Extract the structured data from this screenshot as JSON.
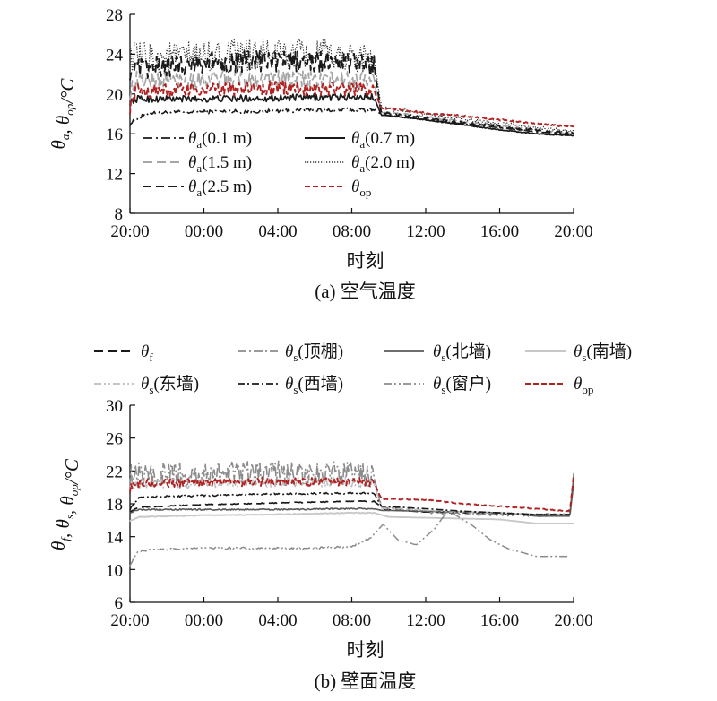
{
  "colors": {
    "black": "#1a1a1a",
    "gray": "#a6a6a6",
    "light_gray": "#c8c8c8",
    "red": "#b22222"
  },
  "chart_data": [
    {
      "type": "line",
      "caption": "(a) 空气温度",
      "xlabel": "时刻",
      "ylabel_parts": [
        "θ",
        "a",
        ", θ",
        "op",
        "/°C"
      ],
      "xticks": [
        "20:00",
        "00:00",
        "04:00",
        "08:00",
        "12:00",
        "16:00",
        "20:00"
      ],
      "x_hours": [
        0,
        4,
        8,
        12,
        16,
        20,
        24
      ],
      "ylim": [
        8,
        28
      ],
      "yticks": [
        8,
        12,
        16,
        20,
        24,
        28
      ],
      "legend": [
        {
          "sym": "θ",
          "sub": "a",
          "tail": "(0.1 m)"
        },
        {
          "sym": "θ",
          "sub": "a",
          "tail": "(0.7 m)"
        },
        {
          "sym": "θ",
          "sub": "a",
          "tail": "(1.5 m)"
        },
        {
          "sym": "θ",
          "sub": "a",
          "tail": "(2.0 m)"
        },
        {
          "sym": "θ",
          "sub": "a",
          "tail": "(2.5 m)"
        },
        {
          "sym": "θ",
          "sub": "op",
          "tail": ""
        }
      ],
      "series": [
        {
          "name": "θa(0.1 m)",
          "color": "#1a1a1a",
          "dash": "10,4,2,4",
          "width": 1.6,
          "noise": 0.2,
          "points": [
            [
              0,
              17
            ],
            [
              0.5,
              17.6
            ],
            [
              1,
              18.1
            ],
            [
              4,
              18.2
            ],
            [
              8,
              18.3
            ],
            [
              12,
              18.4
            ],
            [
              13,
              18.4
            ],
            [
              13.3,
              18.4
            ],
            [
              13.6,
              17.9
            ],
            [
              16,
              17.4
            ],
            [
              18,
              17
            ],
            [
              20,
              16.6
            ],
            [
              22,
              16.2
            ],
            [
              24,
              15.9
            ]
          ]
        },
        {
          "name": "θa(0.7 m)",
          "color": "#1a1a1a",
          "dash": "",
          "width": 1.7,
          "noise": 0.35,
          "points": [
            [
              0,
              19.2
            ],
            [
              0.3,
              19.5
            ],
            [
              4,
              19.5
            ],
            [
              8,
              19.6
            ],
            [
              12,
              19.7
            ],
            [
              13.2,
              19.7
            ],
            [
              13.6,
              17.9
            ],
            [
              16,
              17.4
            ],
            [
              18,
              16.9
            ],
            [
              20,
              16.4
            ],
            [
              22,
              16
            ],
            [
              24,
              15.8
            ]
          ]
        },
        {
          "name": "θa(1.5 m)",
          "color": "#a6a6a6",
          "dash": "10,5",
          "width": 1.7,
          "noise": 0.9,
          "points": [
            [
              0,
              20.2
            ],
            [
              0.3,
              21.4
            ],
            [
              4,
              21.5
            ],
            [
              8,
              21.5
            ],
            [
              12,
              21.4
            ],
            [
              13.2,
              21.3
            ],
            [
              13.6,
              18.2
            ],
            [
              16,
              17.7
            ],
            [
              18,
              17.2
            ],
            [
              20,
              16.8
            ],
            [
              22,
              16.4
            ],
            [
              24,
              16
            ]
          ]
        },
        {
          "name": "θa(2.0 m)",
          "color": "#333333",
          "dash": "1.2,1.8",
          "width": 1.2,
          "noise": 1.6,
          "points": [
            [
              0,
              23.6
            ],
            [
              4,
              23.8
            ],
            [
              8,
              24
            ],
            [
              12,
              23.8
            ],
            [
              13.2,
              23.6
            ],
            [
              13.6,
              18.6
            ],
            [
              16,
              18
            ],
            [
              18,
              17.5
            ],
            [
              20,
              17
            ],
            [
              22,
              16.6
            ],
            [
              24,
              16.2
            ]
          ]
        },
        {
          "name": "θa(2.5 m)",
          "color": "#1a1a1a",
          "dash": "9,5",
          "width": 1.9,
          "noise": 1.1,
          "points": [
            [
              0,
              22.4
            ],
            [
              4,
              23.2
            ],
            [
              8,
              23.3
            ],
            [
              12,
              23.2
            ],
            [
              13.2,
              22.8
            ],
            [
              13.6,
              18.1
            ],
            [
              16,
              17.6
            ],
            [
              18,
              17.1
            ],
            [
              20,
              16.7
            ],
            [
              22,
              16.3
            ],
            [
              24,
              16
            ]
          ]
        },
        {
          "name": "θop",
          "color": "#b22222",
          "dash": "6,3",
          "width": 1.9,
          "noise": 0.7,
          "points": [
            [
              0,
              18.6
            ],
            [
              0.3,
              20.3
            ],
            [
              4,
              20.4
            ],
            [
              8,
              20.6
            ],
            [
              12,
              20.5
            ],
            [
              13.2,
              20.4
            ],
            [
              13.6,
              18.6
            ],
            [
              16,
              18.1
            ],
            [
              18,
              17.8
            ],
            [
              20,
              17.4
            ],
            [
              22,
              17
            ],
            [
              24,
              16.7
            ]
          ]
        }
      ]
    },
    {
      "type": "line",
      "caption": "(b) 壁面温度",
      "xlabel": "时刻",
      "ylabel_parts": [
        "θ",
        "f",
        ", θ",
        "s",
        ", θ",
        "op",
        "/°C"
      ],
      "xticks": [
        "20:00",
        "00:00",
        "04:00",
        "08:00",
        "12:00",
        "16:00",
        "20:00"
      ],
      "x_hours": [
        0,
        4,
        8,
        12,
        16,
        20,
        24
      ],
      "ylim": [
        6,
        30
      ],
      "yticks": [
        6,
        10,
        14,
        18,
        22,
        26,
        30
      ],
      "legend": [
        {
          "sym": "θ",
          "sub": "f",
          "tail": ""
        },
        {
          "sym": "θ",
          "sub": "s",
          "tail": "(顶棚)"
        },
        {
          "sym": "θ",
          "sub": "s",
          "tail": "(北墙)"
        },
        {
          "sym": "θ",
          "sub": "s",
          "tail": "(南墙)"
        },
        {
          "sym": "θ",
          "sub": "s",
          "tail": "(东墙)"
        },
        {
          "sym": "θ",
          "sub": "s",
          "tail": "(西墙)"
        },
        {
          "sym": "θ",
          "sub": "s",
          "tail": "(窗户)"
        },
        {
          "sym": "θ",
          "sub": "op",
          "tail": ""
        }
      ],
      "series": [
        {
          "name": "θf",
          "color": "#1a1a1a",
          "dash": "10,5",
          "width": 1.7,
          "noise": 0.05,
          "points": [
            [
              0,
              17
            ],
            [
              0.5,
              17.6
            ],
            [
              4,
              17.9
            ],
            [
              8,
              18.1
            ],
            [
              12,
              18.3
            ],
            [
              13.2,
              18.3
            ],
            [
              13.8,
              17.3
            ],
            [
              16,
              17
            ],
            [
              18,
              16.9
            ],
            [
              20,
              16.8
            ],
            [
              22,
              16.7
            ],
            [
              23.8,
              16.7
            ]
          ]
        },
        {
          "name": "θs(顶棚)",
          "color": "#8c8c8c",
          "dash": "10,3,2,3",
          "width": 1.6,
          "noise": 1.5,
          "points": [
            [
              0,
              21.5
            ],
            [
              4,
              21.6
            ],
            [
              8,
              21.7
            ],
            [
              12,
              21.6
            ],
            [
              13.2,
              21.3
            ],
            [
              13.6,
              17.6
            ],
            [
              16,
              17
            ],
            [
              18,
              16.8
            ],
            [
              20,
              16.7
            ],
            [
              22,
              16.6
            ],
            [
              23.8,
              16.7
            ],
            [
              24,
              21.5
            ]
          ]
        },
        {
          "name": "θs(北墙)",
          "color": "#5a5a5a",
          "dash": "",
          "width": 1.6,
          "noise": 0.08,
          "points": [
            [
              0,
              16.9
            ],
            [
              0.5,
              17.3
            ],
            [
              4,
              17.3
            ],
            [
              8,
              17.3
            ],
            [
              12,
              17.4
            ],
            [
              13.2,
              17.4
            ],
            [
              13.6,
              17.2
            ],
            [
              16,
              17.1
            ],
            [
              18,
              17.0
            ],
            [
              20,
              16.9
            ],
            [
              22,
              16.5
            ],
            [
              23.8,
              16.5
            ],
            [
              24,
              20.5
            ]
          ]
        },
        {
          "name": "θs(南墙)",
          "color": "#c8c8c8",
          "dash": "",
          "width": 1.9,
          "noise": 0.05,
          "points": [
            [
              0,
              15.9
            ],
            [
              0.5,
              16.4
            ],
            [
              4,
              16.6
            ],
            [
              8,
              16.7
            ],
            [
              12,
              16.9
            ],
            [
              13.2,
              16.9
            ],
            [
              14,
              16.4
            ],
            [
              16,
              16.3
            ],
            [
              18,
              16.2
            ],
            [
              20,
              16.1
            ],
            [
              22,
              15.6
            ],
            [
              24,
              15.6
            ]
          ]
        },
        {
          "name": "θs(东墙)",
          "color": "#bdbdbd",
          "dash": "8,3,2,3,2,3",
          "width": 1.5,
          "noise": 0.6,
          "points": [
            [
              0,
              20.4
            ],
            [
              4,
              20.5
            ],
            [
              8,
              20.6
            ],
            [
              12,
              20.6
            ],
            [
              13.2,
              20.5
            ],
            [
              13.6,
              17.5
            ],
            [
              16,
              17.2
            ],
            [
              18,
              17
            ],
            [
              20,
              16.9
            ],
            [
              22,
              16.7
            ],
            [
              23.8,
              16.8
            ]
          ]
        },
        {
          "name": "θs(西墙)",
          "color": "#1a1a1a",
          "dash": "8,3,2,3",
          "width": 1.6,
          "noise": 0.1,
          "points": [
            [
              0,
              17.3
            ],
            [
              0.5,
              18.8
            ],
            [
              4,
              19
            ],
            [
              8,
              19.2
            ],
            [
              12,
              19.3
            ],
            [
              13.2,
              19.3
            ],
            [
              13.6,
              17.7
            ],
            [
              16,
              17.4
            ],
            [
              18,
              17.1
            ],
            [
              20,
              16.9
            ],
            [
              22,
              16.7
            ],
            [
              23.8,
              16.7
            ]
          ]
        },
        {
          "name": "θs(窗户)",
          "color": "#8c8c8c",
          "dash": "9,3,2,3,2,3",
          "width": 1.5,
          "noise": 0.12,
          "points": [
            [
              0,
              10.5
            ],
            [
              0.4,
              12.2
            ],
            [
              1,
              12.4
            ],
            [
              4,
              12.6
            ],
            [
              8,
              12.6
            ],
            [
              10,
              12.6
            ],
            [
              12,
              12.8
            ],
            [
              13,
              13.8
            ],
            [
              13.7,
              15.5
            ],
            [
              14.5,
              13.6
            ],
            [
              15.5,
              13
            ],
            [
              16.5,
              15
            ],
            [
              17.2,
              17.2
            ],
            [
              18.5,
              15.4
            ],
            [
              19.5,
              13.6
            ],
            [
              20.5,
              12.5
            ],
            [
              21.5,
              11.9
            ],
            [
              22,
              11.6
            ],
            [
              23.8,
              11.6
            ]
          ]
        },
        {
          "name": "θop",
          "color": "#b22222",
          "dash": "6,3",
          "width": 1.9,
          "noise": 0.5,
          "points": [
            [
              0,
              19.8
            ],
            [
              0.4,
              20.5
            ],
            [
              4,
              20.6
            ],
            [
              8,
              20.7
            ],
            [
              12,
              20.7
            ],
            [
              13.2,
              20.6
            ],
            [
              13.6,
              18.6
            ],
            [
              16,
              18.5
            ],
            [
              18,
              18
            ],
            [
              20,
              17.7
            ],
            [
              22,
              17.4
            ],
            [
              23.8,
              17.1
            ],
            [
              24,
              21.4
            ]
          ]
        }
      ]
    }
  ]
}
